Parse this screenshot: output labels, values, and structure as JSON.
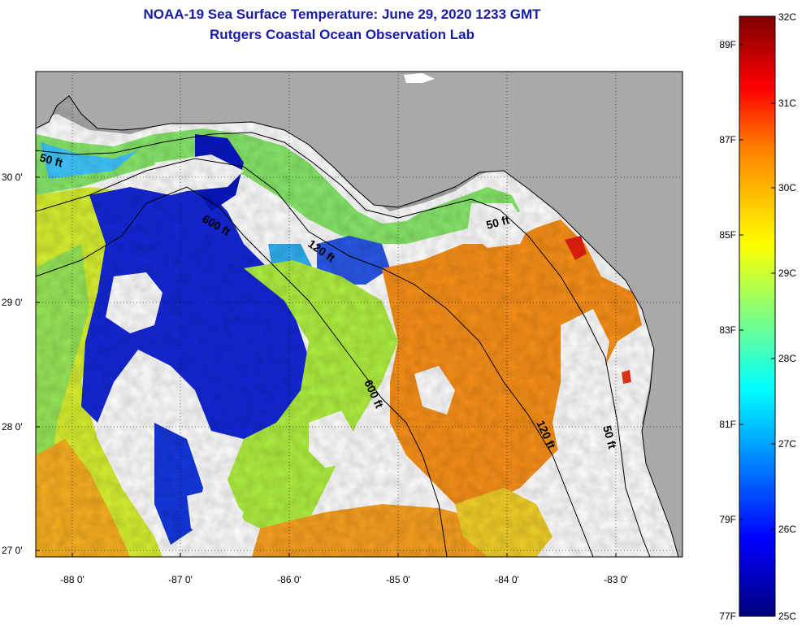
{
  "title_line1": "NOAA-19 Sea Surface Temperature:  June 29, 2020 1233 GMT",
  "title_line2": "Rutgers Coastal Ocean Observation Lab",
  "x_ticks": [
    "-88 0'",
    "-87 0'",
    "-86 0'",
    "-85 0'",
    "-84 0'",
    "-83 0'"
  ],
  "y_ticks": [
    "30 0'",
    "29 0'",
    "28 0'",
    "27 0'"
  ],
  "contours": [
    {
      "label": "50 ft",
      "id": "50a"
    },
    {
      "label": "600 ft",
      "id": "600a"
    },
    {
      "label": "120 ft",
      "id": "120a"
    },
    {
      "label": "50 ft",
      "id": "50b"
    },
    {
      "label": "600 ft",
      "id": "600b"
    },
    {
      "label": "120 ft",
      "id": "120b"
    },
    {
      "label": "50 ft",
      "id": "50c"
    }
  ],
  "colorbar": {
    "celsius": [
      "32C",
      "31C",
      "30C",
      "29C",
      "28C",
      "27C",
      "26C",
      "25C"
    ],
    "fahrenheit": [
      "89F",
      "87F",
      "85F",
      "83F",
      "81F",
      "79F",
      "77F"
    ]
  },
  "colors": {
    "title": "#1a1aa8",
    "land": "#a9a9a9",
    "cloud": "#ffffff"
  }
}
